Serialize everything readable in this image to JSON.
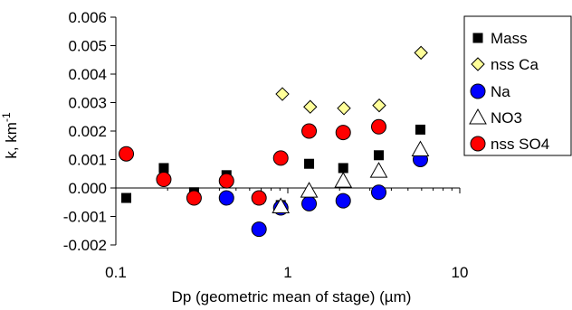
{
  "chart_data": {
    "type": "scatter",
    "title": "",
    "xlabel": "Dp (geometric mean of stage) (µm)",
    "ylabel": "k, km",
    "ylabel_superscript": "-1",
    "x_scale": "log",
    "xlim": [
      0.1,
      10
    ],
    "ylim": [
      -0.002,
      0.006
    ],
    "x_ticks": [
      0.1,
      1,
      10
    ],
    "x_tick_labels": [
      "0.1",
      "1",
      "10"
    ],
    "y_ticks": [
      -0.002,
      -0.001,
      0.0,
      0.001,
      0.002,
      0.003,
      0.004,
      0.005,
      0.006
    ],
    "y_tick_labels": [
      "-0.002",
      "-0.001",
      "0.000",
      "0.001",
      "0.002",
      "0.003",
      "0.004",
      "0.005",
      "0.006"
    ],
    "grid": false,
    "legend_position": "right",
    "series": [
      {
        "name": "Mass",
        "marker": "square",
        "color": "#000000",
        "x": [
          0.115,
          0.19,
          0.285,
          0.44,
          0.68,
          0.91,
          1.33,
          2.1,
          3.38,
          5.9
        ],
        "y": [
          -0.00035,
          0.0007,
          -0.00015,
          0.00045,
          -0.0004,
          -0.0006,
          0.00085,
          0.0007,
          0.00115,
          0.00205
        ]
      },
      {
        "name": "nss Ca",
        "marker": "diamond",
        "color": "#ffff99",
        "x": [
          0.93,
          1.35,
          2.12,
          3.4,
          5.95
        ],
        "y": [
          0.0033,
          0.00285,
          0.0028,
          0.0029,
          0.00475
        ]
      },
      {
        "name": "Na",
        "marker": "circle",
        "color": "#0000ff",
        "x": [
          0.44,
          0.68,
          0.91,
          1.33,
          2.1,
          3.38,
          5.9
        ],
        "y": [
          -0.00035,
          -0.00145,
          -0.0007,
          -0.00055,
          -0.00045,
          -0.00015,
          0.001
        ]
      },
      {
        "name": "NO3",
        "marker": "triangle",
        "color": "#ffffff",
        "x": [
          0.91,
          1.33,
          2.1,
          3.38,
          5.9
        ],
        "y": [
          -0.00065,
          -0.0001,
          0.00025,
          0.0006,
          0.00135
        ]
      },
      {
        "name": "nss SO4",
        "marker": "circle",
        "color": "#ff0000",
        "x": [
          0.115,
          0.19,
          0.285,
          0.44,
          0.68,
          0.91,
          1.33,
          2.1,
          3.38
        ],
        "y": [
          0.0012,
          0.0003,
          -0.00035,
          0.00025,
          -0.00035,
          0.00105,
          0.002,
          0.00195,
          0.00215
        ]
      }
    ]
  }
}
